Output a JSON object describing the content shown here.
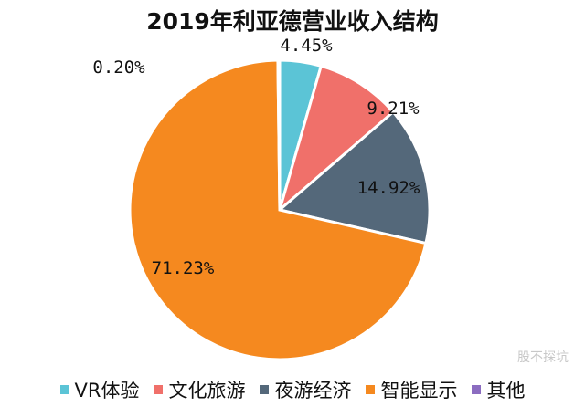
{
  "chart_data": {
    "type": "pie",
    "title": "2019年利亚德营业收入结构",
    "categories": [
      "VR体验",
      "文化旅游",
      "夜游经济",
      "智能显示",
      "其他"
    ],
    "values": [
      4.45,
      9.21,
      14.92,
      71.23,
      0.2
    ],
    "labels": [
      "4.45%",
      "9.21%",
      "14.92%",
      "71.23%",
      "0.20%"
    ],
    "colors": [
      "#5bc4d6",
      "#f0706a",
      "#54687a",
      "#f5891f",
      "#8b6cc0"
    ],
    "legend": "bottom"
  },
  "watermark": "股不探坑"
}
